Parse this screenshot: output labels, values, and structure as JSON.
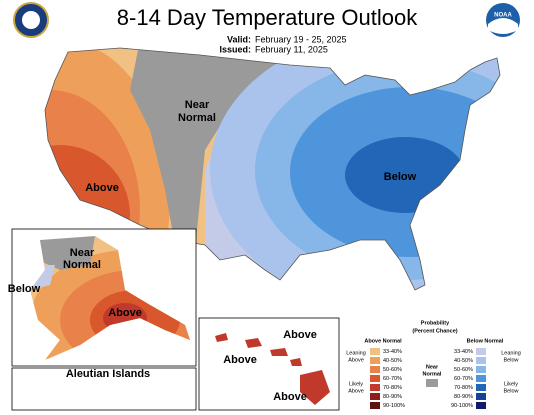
{
  "header": {
    "title": "8-14 Day Temperature Outlook",
    "valid_label": "Valid:",
    "valid": "February 19 - 25, 2025",
    "issued_label": "Issued:",
    "issued": "February 11, 2025"
  },
  "logos": {
    "noaa": "NOAA"
  },
  "conus": {
    "near_normal": [
      "Near",
      "Normal"
    ],
    "above": "Above",
    "below": "Below"
  },
  "alaska": {
    "near_normal": [
      "Near",
      "Normal"
    ],
    "below": "Below",
    "above": "Above",
    "aleutian": "Aleutian Islands"
  },
  "hawaii": {
    "labels": [
      "Above",
      "Above",
      "Above"
    ]
  },
  "legend": {
    "title": "Probability",
    "subtitle": "(Percent Chance)",
    "above_header": "Above Normal",
    "below_header": "Below Normal",
    "leaning_above": [
      "Leaning",
      "Above"
    ],
    "likely_above": [
      "Likely",
      "Above"
    ],
    "near_normal": [
      "Near",
      "Normal"
    ],
    "leaning_below": [
      "Leaning",
      "Below"
    ],
    "likely_below": [
      "Likely",
      "Below"
    ],
    "above_ranges": [
      "33-40%",
      "40-50%",
      "50-60%",
      "60-70%",
      "70-80%",
      "80-90%",
      "90-100%"
    ],
    "below_ranges": [
      "33-40%",
      "40-50%",
      "50-60%",
      "60-70%",
      "70-80%",
      "80-90%",
      "90-100%"
    ]
  }
}
